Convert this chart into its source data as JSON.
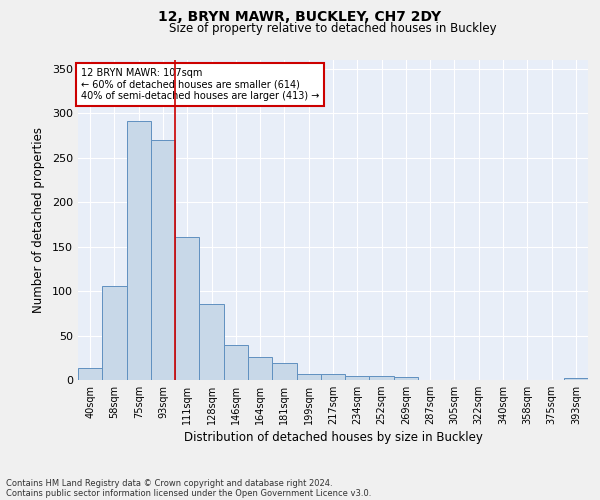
{
  "title1": "12, BRYN MAWR, BUCKLEY, CH7 2DY",
  "title2": "Size of property relative to detached houses in Buckley",
  "xlabel": "Distribution of detached houses by size in Buckley",
  "ylabel": "Number of detached properties",
  "footer1": "Contains HM Land Registry data © Crown copyright and database right 2024.",
  "footer2": "Contains public sector information licensed under the Open Government Licence v3.0.",
  "categories": [
    "40sqm",
    "58sqm",
    "75sqm",
    "93sqm",
    "111sqm",
    "128sqm",
    "146sqm",
    "164sqm",
    "181sqm",
    "199sqm",
    "217sqm",
    "234sqm",
    "252sqm",
    "269sqm",
    "287sqm",
    "305sqm",
    "322sqm",
    "340sqm",
    "358sqm",
    "375sqm",
    "393sqm"
  ],
  "values": [
    14,
    106,
    291,
    270,
    161,
    85,
    39,
    26,
    19,
    7,
    7,
    4,
    4,
    3,
    0,
    0,
    0,
    0,
    0,
    0,
    2
  ],
  "bar_color": "#c8d8e8",
  "bar_edge_color": "#6090c0",
  "background_color": "#e8eef8",
  "grid_color": "#ffffff",
  "annotation_line1": "12 BRYN MAWR: 107sqm",
  "annotation_line2": "← 60% of detached houses are smaller (614)",
  "annotation_line3": "40% of semi-detached houses are larger (413) →",
  "annotation_box_color": "#ffffff",
  "annotation_box_edge_color": "#cc0000",
  "red_line_x": 3.5,
  "ylim": [
    0,
    360
  ],
  "yticks": [
    0,
    50,
    100,
    150,
    200,
    250,
    300,
    350
  ],
  "fig_bg": "#f0f0f0"
}
